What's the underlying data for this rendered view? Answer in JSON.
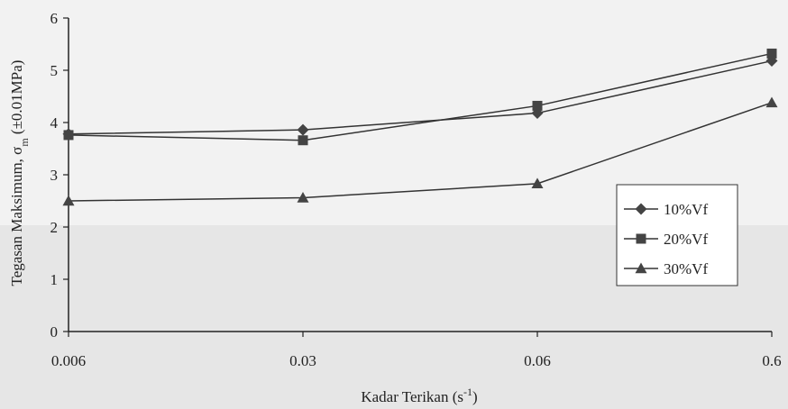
{
  "chart_data": {
    "type": "line",
    "title": "",
    "xlabel": "Kadar Terikan (s-1)",
    "xlabel_main": "Kadar Terikan (s",
    "xlabel_sup": "-1",
    "xlabel_close": ")",
    "ylabel": "Tegasan Maksimum, σm (±0.01MPa)",
    "ylabel_main": "Tegasan Maksimum, σ",
    "ylabel_sub": "m",
    "ylabel_rest": " (±0.01MPa)",
    "categories": [
      "0.006",
      "0.03",
      "0.06",
      "0.6"
    ],
    "ylim": [
      0,
      6
    ],
    "yticks": [
      0,
      1,
      2,
      3,
      4,
      5,
      6
    ],
    "grid": false,
    "legend_position": "right",
    "series": [
      {
        "name": "10%Vf",
        "marker": "diamond",
        "values": [
          3.78,
          3.86,
          4.18,
          5.18
        ]
      },
      {
        "name": "20%Vf",
        "marker": "square",
        "values": [
          3.76,
          3.66,
          4.32,
          5.32
        ]
      },
      {
        "name": "30%Vf",
        "marker": "triangle",
        "values": [
          2.5,
          2.56,
          2.83,
          4.38
        ]
      }
    ],
    "colors": {
      "line": "#333333",
      "marker": "#444444",
      "axis": "#222222",
      "background": "#ececec"
    }
  }
}
